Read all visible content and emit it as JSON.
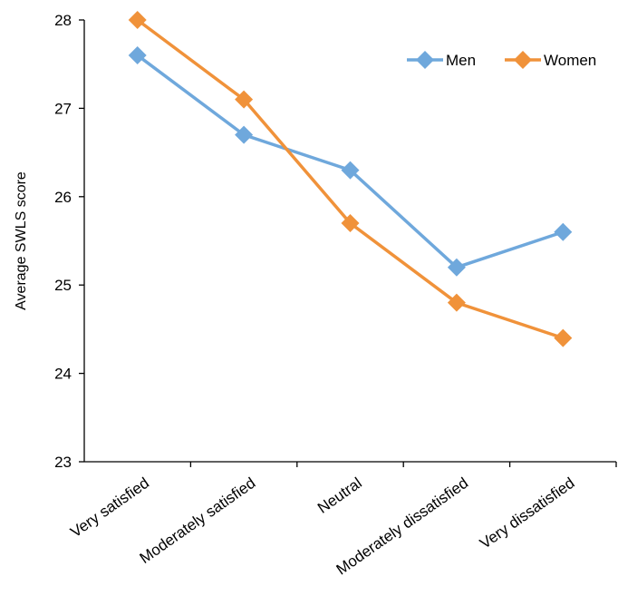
{
  "chart_data": {
    "type": "line",
    "title": "",
    "xlabel": "",
    "ylabel": "Average SWLS score",
    "categories": [
      "Very satisfied",
      "Moderately satisfied",
      "Neutral",
      "Moderately dissatisfied",
      "Very dissatisfied"
    ],
    "yticks": [
      "23",
      "24",
      "25",
      "26",
      "27",
      "28"
    ],
    "ylim": [
      23,
      28
    ],
    "grid": false,
    "legend_position": "top-right",
    "series": [
      {
        "name": "Men",
        "color": "#6FA8DC",
        "values": [
          27.6,
          26.7,
          26.3,
          25.2,
          25.6
        ]
      },
      {
        "name": "Women",
        "color": "#F0923A",
        "values": [
          28.0,
          27.1,
          25.7,
          24.8,
          24.4
        ]
      }
    ]
  }
}
